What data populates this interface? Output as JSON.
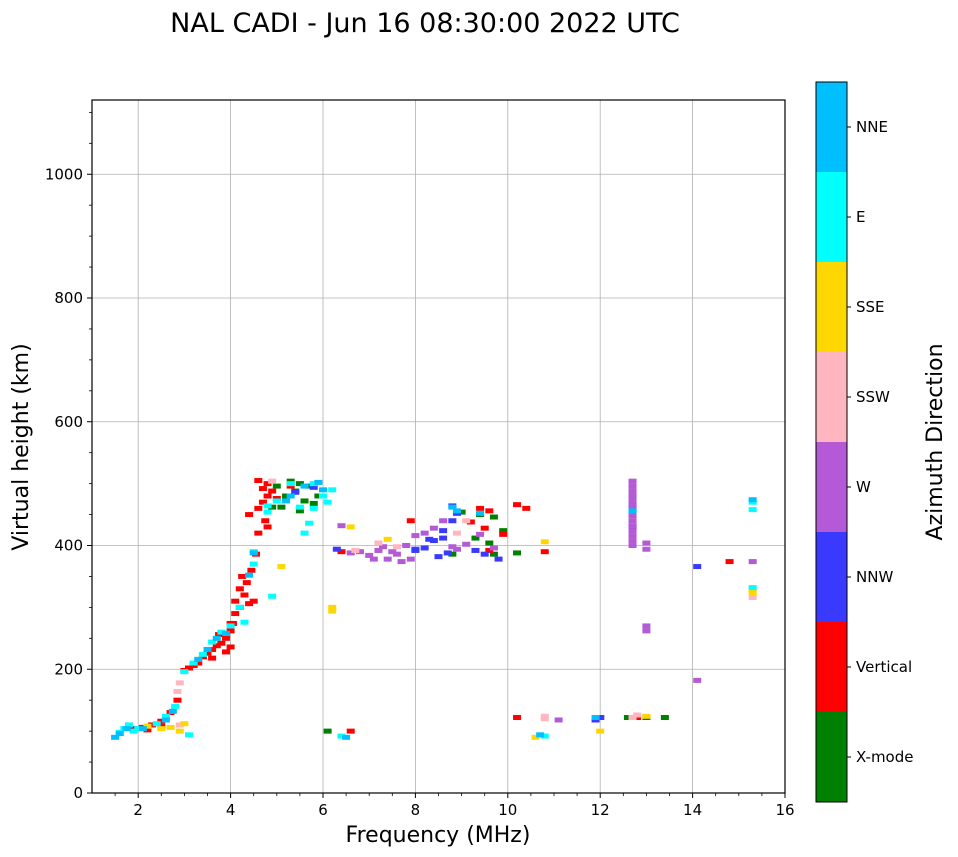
{
  "chart_data": {
    "type": "scatter",
    "title": "NAL CADI - Jun 16 08:30:00 2022 UTC",
    "xlabel": "Frequency (MHz)",
    "ylabel": "Virtual height (km)",
    "xlim": [
      1,
      16
    ],
    "ylim": [
      0,
      1120
    ],
    "xticks": [
      2,
      4,
      6,
      8,
      10,
      12,
      14,
      16
    ],
    "yticks": [
      0,
      200,
      400,
      600,
      800,
      1000
    ],
    "grid": true,
    "colorbar": {
      "label": "Azimuth Direction",
      "categories": [
        {
          "name": "X-mode",
          "color": "#008000"
        },
        {
          "name": "Vertical",
          "color": "#ff0000"
        },
        {
          "name": "NNW",
          "color": "#3a3aff"
        },
        {
          "name": "W",
          "color": "#b45ad6"
        },
        {
          "name": "SSW",
          "color": "#ffb6c1"
        },
        {
          "name": "SSE",
          "color": "#ffd700"
        },
        {
          "name": "E",
          "color": "#00ffff"
        },
        {
          "name": "NNE",
          "color": "#00bfff"
        }
      ]
    },
    "series": [
      {
        "name": "X-mode",
        "points": [
          [
            5.3,
            504
          ],
          [
            5.5,
            500
          ],
          [
            5.7,
            496
          ],
          [
            5.4,
            488
          ],
          [
            5.2,
            480
          ],
          [
            5.6,
            472
          ],
          [
            5.8,
            468
          ],
          [
            5.1,
            462
          ],
          [
            5.5,
            456
          ],
          [
            5.9,
            480
          ],
          [
            9.0,
            454
          ],
          [
            9.4,
            450
          ],
          [
            9.7,
            446
          ],
          [
            9.9,
            424
          ],
          [
            9.3,
            412
          ],
          [
            9.6,
            404
          ],
          [
            10.2,
            388
          ],
          [
            12.0,
            122
          ],
          [
            12.6,
            122
          ],
          [
            13.0,
            122
          ],
          [
            13.4,
            122
          ],
          [
            12.7,
            480
          ],
          [
            12.7,
            460
          ],
          [
            12.7,
            430
          ],
          [
            6.1,
            100
          ],
          [
            8.8,
            386
          ],
          [
            9.7,
            386
          ],
          [
            5.0,
            496
          ],
          [
            4.9,
            462
          ]
        ]
      },
      {
        "name": "Vertical",
        "points": [
          [
            1.9,
            104
          ],
          [
            2.1,
            106
          ],
          [
            2.3,
            110
          ],
          [
            2.5,
            116
          ],
          [
            2.7,
            130
          ],
          [
            2.85,
            150
          ],
          [
            3.0,
            198
          ],
          [
            3.1,
            202
          ],
          [
            3.2,
            206
          ],
          [
            3.3,
            210
          ],
          [
            3.4,
            220
          ],
          [
            3.5,
            226
          ],
          [
            3.6,
            232
          ],
          [
            3.7,
            238
          ],
          [
            3.8,
            242
          ],
          [
            3.9,
            250
          ],
          [
            4.0,
            262
          ],
          [
            4.05,
            274
          ],
          [
            4.1,
            290
          ],
          [
            4.2,
            300
          ],
          [
            4.3,
            320
          ],
          [
            4.35,
            340
          ],
          [
            4.45,
            360
          ],
          [
            4.55,
            386
          ],
          [
            4.6,
            460
          ],
          [
            4.7,
            470
          ],
          [
            4.8,
            480
          ],
          [
            4.9,
            488
          ],
          [
            4.7,
            492
          ],
          [
            4.8,
            500
          ],
          [
            4.6,
            505
          ],
          [
            5.0,
            476
          ],
          [
            4.75,
            440
          ],
          [
            4.8,
            430
          ],
          [
            4.4,
            450
          ],
          [
            4.6,
            420
          ],
          [
            5.3,
            496
          ],
          [
            3.6,
            218
          ],
          [
            3.9,
            228
          ],
          [
            4.0,
            236
          ],
          [
            3.75,
            256
          ],
          [
            4.1,
            310
          ],
          [
            4.2,
            330
          ],
          [
            4.4,
            306
          ],
          [
            4.5,
            310
          ],
          [
            4.25,
            350
          ],
          [
            4.0,
            274
          ],
          [
            6.6,
            100
          ],
          [
            10.2,
            466
          ],
          [
            10.4,
            460
          ],
          [
            9.4,
            460
          ],
          [
            9.6,
            456
          ],
          [
            9.5,
            428
          ],
          [
            9.9,
            418
          ],
          [
            9.2,
            438
          ],
          [
            9.6,
            392
          ],
          [
            10.8,
            390
          ],
          [
            7.9,
            440
          ],
          [
            6.4,
            390
          ],
          [
            10.2,
            122
          ],
          [
            12.8,
            122
          ],
          [
            14.8,
            374
          ],
          [
            2.5,
            108
          ],
          [
            2.2,
            102
          ]
        ]
      },
      {
        "name": "NNW",
        "points": [
          [
            8.2,
            396
          ],
          [
            8.4,
            408
          ],
          [
            8.6,
            424
          ],
          [
            8.8,
            440
          ],
          [
            8.5,
            382
          ],
          [
            8.9,
            452
          ],
          [
            9.5,
            386
          ],
          [
            9.8,
            378
          ],
          [
            8.3,
            410
          ],
          [
            8.0,
            394
          ],
          [
            11.9,
            118
          ],
          [
            12.0,
            122
          ],
          [
            14.1,
            366
          ],
          [
            6.3,
            394
          ],
          [
            8.7,
            388
          ],
          [
            8.8,
            464
          ],
          [
            5.4,
            486
          ],
          [
            5.8,
            494
          ],
          [
            9.3,
            392
          ],
          [
            8.0,
            392
          ],
          [
            8.6,
            412
          ],
          [
            12.7,
            465
          ],
          [
            12.7,
            430
          ]
        ]
      },
      {
        "name": "W",
        "points": [
          [
            7.0,
            384
          ],
          [
            7.2,
            392
          ],
          [
            7.4,
            378
          ],
          [
            7.6,
            386
          ],
          [
            7.8,
            400
          ],
          [
            7.3,
            398
          ],
          [
            7.1,
            378
          ],
          [
            7.5,
            390
          ],
          [
            7.7,
            374
          ],
          [
            8.0,
            416
          ],
          [
            8.2,
            420
          ],
          [
            8.4,
            428
          ],
          [
            8.6,
            440
          ],
          [
            8.9,
            394
          ],
          [
            9.1,
            402
          ],
          [
            9.4,
            418
          ],
          [
            9.7,
            396
          ],
          [
            12.7,
            504
          ],
          [
            12.7,
            496
          ],
          [
            12.7,
            488
          ],
          [
            12.7,
            480
          ],
          [
            12.7,
            472
          ],
          [
            12.7,
            464
          ],
          [
            12.7,
            456
          ],
          [
            12.7,
            448
          ],
          [
            12.7,
            440
          ],
          [
            12.7,
            432
          ],
          [
            12.7,
            424
          ],
          [
            12.7,
            416
          ],
          [
            12.7,
            408
          ],
          [
            12.7,
            400
          ],
          [
            13.0,
            404
          ],
          [
            13.0,
            394
          ],
          [
            13.0,
            270
          ],
          [
            13.0,
            262
          ],
          [
            14.1,
            182
          ],
          [
            15.3,
            374
          ],
          [
            11.1,
            118
          ],
          [
            6.6,
            388
          ],
          [
            6.8,
            390
          ],
          [
            7.9,
            378
          ],
          [
            8.8,
            398
          ],
          [
            6.4,
            432
          ]
        ]
      },
      {
        "name": "SSW",
        "points": [
          [
            2.85,
            164
          ],
          [
            2.8,
            140
          ],
          [
            2.9,
            110
          ],
          [
            10.8,
            124
          ],
          [
            10.8,
            120
          ],
          [
            12.8,
            126
          ],
          [
            12.7,
            122
          ],
          [
            15.3,
            316
          ],
          [
            7.2,
            404
          ],
          [
            8.9,
            420
          ],
          [
            9.1,
            440
          ],
          [
            7.6,
            398
          ],
          [
            6.7,
            392
          ],
          [
            2.9,
            178
          ],
          [
            4.9,
            504
          ]
        ]
      },
      {
        "name": "SSE",
        "points": [
          [
            2.2,
            108
          ],
          [
            2.5,
            104
          ],
          [
            2.9,
            100
          ],
          [
            3.0,
            112
          ],
          [
            5.1,
            366
          ],
          [
            6.2,
            300
          ],
          [
            6.2,
            294
          ],
          [
            10.6,
            90
          ],
          [
            10.8,
            406
          ],
          [
            12.0,
            100
          ],
          [
            13.0,
            124
          ],
          [
            15.3,
            324
          ],
          [
            15.3,
            330
          ],
          [
            6.6,
            430
          ],
          [
            7.4,
            410
          ],
          [
            2.7,
            106
          ]
        ]
      },
      {
        "name": "E",
        "points": [
          [
            1.6,
            98
          ],
          [
            1.7,
            104
          ],
          [
            1.8,
            110
          ],
          [
            1.9,
            100
          ],
          [
            2.0,
            104
          ],
          [
            2.4,
            112
          ],
          [
            2.6,
            124
          ],
          [
            2.8,
            140
          ],
          [
            3.0,
            196
          ],
          [
            3.2,
            210
          ],
          [
            3.4,
            224
          ],
          [
            3.6,
            244
          ],
          [
            3.8,
            260
          ],
          [
            4.0,
            270
          ],
          [
            4.2,
            300
          ],
          [
            4.9,
            318
          ],
          [
            4.5,
            390
          ],
          [
            4.8,
            464
          ],
          [
            4.8,
            454
          ],
          [
            5.0,
            472
          ],
          [
            5.5,
            462
          ],
          [
            5.8,
            460
          ],
          [
            6.0,
            480
          ],
          [
            6.2,
            490
          ],
          [
            5.8,
            500
          ],
          [
            5.6,
            420
          ],
          [
            5.7,
            436
          ],
          [
            10.8,
            92
          ],
          [
            15.3,
            458
          ],
          [
            15.3,
            470
          ],
          [
            15.3,
            332
          ],
          [
            3.1,
            94
          ],
          [
            6.1,
            470
          ],
          [
            5.3,
            500
          ],
          [
            4.3,
            276
          ],
          [
            4.5,
            370
          ],
          [
            6.4,
            92
          ]
        ]
      },
      {
        "name": "NNE",
        "points": [
          [
            1.5,
            90
          ],
          [
            1.6,
            96
          ],
          [
            1.75,
            104
          ],
          [
            2.1,
            104
          ],
          [
            2.6,
            118
          ],
          [
            2.75,
            132
          ],
          [
            3.3,
            216
          ],
          [
            3.5,
            232
          ],
          [
            3.7,
            250
          ],
          [
            3.9,
            258
          ],
          [
            4.5,
            388
          ],
          [
            5.6,
            496
          ],
          [
            5.9,
            502
          ],
          [
            6.0,
            490
          ],
          [
            5.3,
            480
          ],
          [
            8.8,
            462
          ],
          [
            8.9,
            456
          ],
          [
            9.4,
            452
          ],
          [
            11.9,
            122
          ],
          [
            12.7,
            456
          ],
          [
            15.3,
            474
          ],
          [
            4.4,
            352
          ],
          [
            6.5,
            90
          ],
          [
            5.2,
            472
          ],
          [
            10.7,
            94
          ]
        ]
      }
    ]
  }
}
